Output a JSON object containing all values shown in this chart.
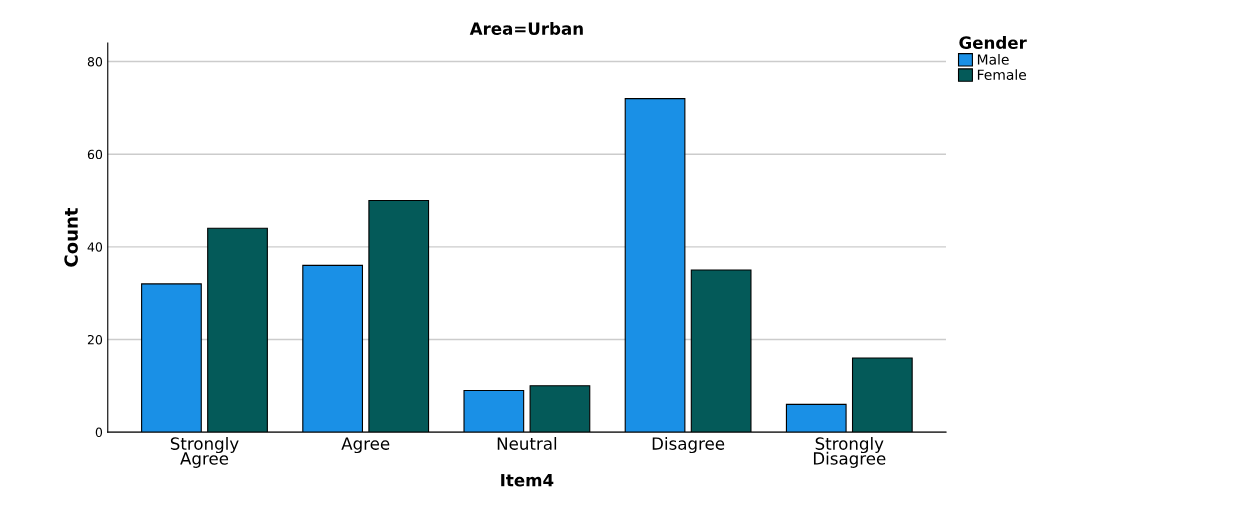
{
  "chart_data": {
    "type": "bar",
    "title": "Area=Urban",
    "xlabel": "Item4",
    "ylabel": "Count",
    "legend_title": "Gender",
    "categories": [
      "Strongly\nAgree",
      "Agree",
      "Neutral",
      "Disagree",
      "Strongly\nDisagree"
    ],
    "series": [
      {
        "name": "Male",
        "color": "#1a90e6",
        "values": [
          32,
          36,
          9,
          72,
          6
        ]
      },
      {
        "name": "Female",
        "color": "#045a59",
        "values": [
          44,
          50,
          10,
          35,
          16
        ]
      }
    ],
    "ylim": [
      0,
      84
    ],
    "yticks": [
      0,
      20,
      40,
      60,
      80
    ],
    "grid": "y",
    "legend": "top right"
  }
}
